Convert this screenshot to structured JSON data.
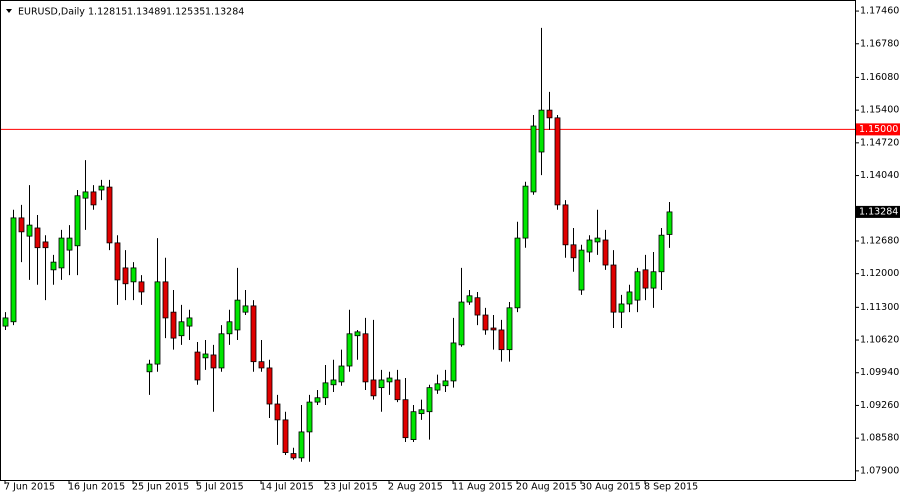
{
  "chart_data": {
    "type": "candlestick",
    "title": "EURUSD,Daily",
    "categories": [
      "7 Jun 2015",
      null,
      null,
      null,
      null,
      null,
      null,
      null,
      "16 Jun 2015",
      null,
      null,
      null,
      null,
      null,
      null,
      null,
      "25 Jun 2015",
      null,
      null,
      null,
      null,
      null,
      null,
      null,
      "5 Jul 2015",
      null,
      null,
      null,
      null,
      null,
      null,
      null,
      "14 Jul 2015",
      null,
      null,
      null,
      null,
      null,
      null,
      null,
      "23 Jul 2015",
      null,
      null,
      null,
      null,
      null,
      null,
      null,
      "2 Aug 2015",
      null,
      null,
      null,
      null,
      null,
      null,
      null,
      "11 Aug 2015",
      null,
      null,
      null,
      null,
      null,
      null,
      null,
      "20 Aug 2015",
      null,
      null,
      null,
      null,
      null,
      null,
      null,
      "30 Aug 2015",
      null,
      null,
      null,
      null,
      null,
      null,
      null,
      "8 Sep 2015",
      null,
      null,
      null
    ],
    "open": [
      1.1091,
      1.11,
      1.1316,
      1.1278,
      1.1295,
      1.1266,
      1.1208,
      1.1212,
      1.1249,
      1.1258,
      1.1357,
      1.137,
      1.1374,
      1.138,
      1.1264,
      1.1212,
      1.1183,
      1.1183,
      1.0996,
      1.1012,
      1.1183,
      1.112,
      1.1071,
      1.1091,
      1.1037,
      1.1025,
      1.1031,
      1.1004,
      1.1075,
      1.1083,
      1.112,
      1.1133,
      1.1017,
      1.1004,
      1.0929,
      1.0896,
      1.0826,
      1.0817,
      1.0871,
      1.0933,
      1.0942,
      1.0969,
      1.0975,
      1.1008,
      1.1071,
      1.1075,
      1.0979,
      1.0963,
      1.0975,
      1.0979,
      1.0938,
      1.0855,
      1.0909,
      1.0913,
      1.0958,
      1.0967,
      1.0977,
      1.1052,
      1.1141,
      1.115,
      1.1114,
      1.1087,
      1.1083,
      1.1042,
      1.1129,
      1.1274,
      1.137,
      1.1453,
      1.154,
      1.1524,
      1.1343,
      1.126,
      1.1166,
      1.1245,
      1.1266,
      1.127,
      1.1218,
      1.112,
      1.1137,
      1.1145,
      1.1208,
      1.117,
      1.1204,
      1.12815
    ],
    "high": [
      1.112,
      1.1333,
      1.1343,
      1.1384,
      1.1322,
      1.128,
      1.1239,
      1.1291,
      1.1301,
      1.1374,
      1.1436,
      1.1384,
      1.1395,
      1.1395,
      1.128,
      1.1249,
      1.1224,
      1.1197,
      1.1021,
      1.1274,
      1.1233,
      1.1166,
      1.1135,
      1.1125,
      1.1058,
      1.1062,
      1.1052,
      1.1093,
      1.1125,
      1.1212,
      1.1166,
      1.1145,
      1.1062,
      1.1021,
      1.0948,
      1.0913,
      1.0838,
      1.0927,
      1.0948,
      1.0958,
      1.101,
      1.1021,
      1.1042,
      1.1125,
      1.1083,
      1.1108,
      1.1104,
      1.1,
      1.0996,
      1.1,
      1.0983,
      1.0927,
      1.0938,
      1.0969,
      1.099,
      1.1,
      1.1108,
      1.1212,
      1.1166,
      1.1162,
      1.1129,
      1.1114,
      1.1104,
      1.1141,
      1.1308,
      1.1391,
      1.153,
      1.1711,
      1.1578,
      1.153,
      1.1353,
      1.1295,
      1.126,
      1.128,
      1.1333,
      1.1291,
      1.1249,
      1.1156,
      1.1177,
      1.1212,
      1.1239,
      1.1245,
      1.1295,
      1.13489
    ],
    "low": [
      1.1083,
      1.1093,
      1.1224,
      1.1187,
      1.1177,
      1.1145,
      1.1177,
      1.1187,
      1.1197,
      1.1197,
      1.1291,
      1.1333,
      1.1353,
      1.1249,
      1.1135,
      1.1145,
      1.1145,
      1.1135,
      1.0948,
      1.0996,
      1.1066,
      1.1042,
      1.1052,
      1.1062,
      1.0969,
      1.1,
      1.0913,
      1.0996,
      1.1052,
      1.1062,
      1.1114,
      1.0996,
      1.0996,
      1.09,
      1.0844,
      1.0823,
      1.0813,
      1.0809,
      1.0809,
      1.0927,
      1.0927,
      1.0954,
      1.0967,
      1.0996,
      1.1021,
      1.0958,
      1.0938,
      1.0913,
      1.0948,
      1.0933,
      1.085,
      1.085,
      1.0896,
      1.0855,
      1.095,
      1.0954,
      1.0963,
      1.1048,
      1.1135,
      1.1093,
      1.1073,
      1.1042,
      1.1017,
      1.1017,
      1.112,
      1.1254,
      1.1364,
      1.1405,
      1.1499,
      1.1333,
      1.1233,
      1.1204,
      1.1156,
      1.1224,
      1.1239,
      1.1208,
      1.1087,
      1.1087,
      1.112,
      1.112,
      1.1145,
      1.1129,
      1.1166,
      1.12535
    ],
    "close": [
      1.1108,
      1.1316,
      1.1287,
      1.1301,
      1.1254,
      1.1254,
      1.1224,
      1.1274,
      1.1274,
      1.1362,
      1.137,
      1.1343,
      1.1382,
      1.1264,
      1.1187,
      1.1179,
      1.1212,
      1.1162,
      1.1012,
      1.1183,
      1.1108,
      1.1066,
      1.11,
      1.1108,
      1.0979,
      1.1033,
      1.1004,
      1.1075,
      1.11,
      1.1145,
      1.1133,
      1.1017,
      1.1004,
      1.0929,
      1.0896,
      1.0828,
      1.0817,
      1.0871,
      1.0933,
      1.0942,
      1.0973,
      1.0979,
      1.1008,
      1.1075,
      1.1079,
      1.0975,
      1.0946,
      1.0979,
      1.0983,
      1.0938,
      1.0859,
      1.0913,
      1.0917,
      1.0963,
      1.0971,
      1.0977,
      1.1056,
      1.1141,
      1.1154,
      1.1114,
      1.1083,
      1.1083,
      1.1042,
      1.1129,
      1.1274,
      1.1382,
      1.1507,
      1.154,
      1.1524,
      1.1343,
      1.126,
      1.1233,
      1.1249,
      1.127,
      1.1274,
      1.1218,
      1.112,
      1.1137,
      1.1162,
      1.1204,
      1.117,
      1.1204,
      1.128,
      1.13284
    ],
    "up_color": "#00e600",
    "down_color": "#e00000",
    "ylim": [
      1.0771,
      1.1769
    ],
    "yticks": [
      {
        "value": 1.1746,
        "label": "1.17460"
      },
      {
        "value": 1.1678,
        "label": "1.16780"
      },
      {
        "value": 1.1608,
        "label": "1.16080"
      },
      {
        "value": 1.154,
        "label": "1.15400"
      },
      {
        "value": 1.1472,
        "label": "1.14720"
      },
      {
        "value": 1.1404,
        "label": "1.14040"
      },
      {
        "value": 1.1268,
        "label": "1.12680"
      },
      {
        "value": 1.12,
        "label": "1.12000"
      },
      {
        "value": 1.113,
        "label": "1.11300"
      },
      {
        "value": 1.1062,
        "label": "1.10620"
      },
      {
        "value": 1.0994,
        "label": "1.09940"
      },
      {
        "value": 1.0926,
        "label": "1.09260"
      },
      {
        "value": 1.0858,
        "label": "1.08580"
      },
      {
        "value": 1.079,
        "label": "1.07900"
      }
    ],
    "hline": {
      "value": 1.15,
      "label": "1.15000",
      "color": "#ff0000"
    }
  }
}
